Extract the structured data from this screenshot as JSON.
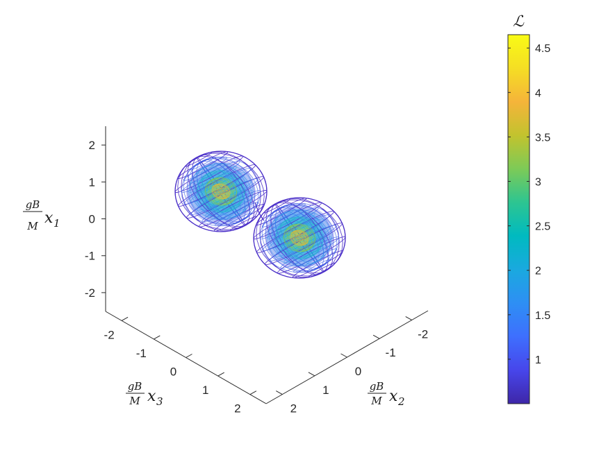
{
  "chart_data": {
    "type": "3d-isosurface-wireframe",
    "description_terms": [],
    "axes": {
      "vertical": {
        "label_frac_num": "gB",
        "label_frac_den": "M",
        "label_var": "x",
        "label_sub": "1",
        "ticks": [
          "2",
          "1",
          "0",
          "-1",
          "-2"
        ],
        "tick_values": [
          2,
          1,
          0,
          -1,
          -2
        ],
        "range": [
          -2.5,
          2.5
        ]
      },
      "left_floor": {
        "label_frac_num": "gB",
        "label_frac_den": "M",
        "label_var": "x",
        "label_sub": "3",
        "ticks": [
          "-2",
          "-1",
          "0",
          "1",
          "2"
        ],
        "tick_values": [
          -2,
          -1,
          0,
          1,
          2
        ],
        "range": [
          -2.5,
          2.5
        ]
      },
      "right_floor": {
        "label_frac_num": "gB",
        "label_frac_den": "M",
        "label_var": "x",
        "label_sub": "2",
        "ticks": [
          "2",
          "1",
          "0",
          "-1",
          "-2"
        ],
        "tick_values": [
          2,
          1,
          0,
          -1,
          -2
        ],
        "range": [
          -2.5,
          2.5
        ]
      }
    },
    "surface": {
      "lobes": [
        {
          "x1": 0.8,
          "x2": 0.7,
          "x3": -0.7,
          "radius": 1.0
        },
        {
          "x1": -0.8,
          "x2": -0.7,
          "x3": 0.7,
          "radius": 1.0
        }
      ],
      "style": "wireframe mesh colored by L",
      "outer_level": 0.5,
      "inner_peak": 4.6
    },
    "colorbar": {
      "title": "ℒ",
      "ticks": [
        "4.5",
        "4",
        "3.5",
        "3",
        "2.5",
        "2",
        "1.5",
        "1"
      ],
      "tick_values": [
        4.5,
        4,
        3.5,
        3,
        2.5,
        2,
        1.5,
        1
      ],
      "range": [
        0.5,
        4.65
      ],
      "colormap": "parula",
      "colormap_stops": [
        "#3e26a8",
        "#4746eb",
        "#3e6ffe",
        "#2e8ff4",
        "#1aa9df",
        "#00bac0",
        "#2dc591",
        "#7dca57",
        "#c2c32e",
        "#f5b43a",
        "#f5de24",
        "#f9fb15"
      ]
    },
    "grid": false
  }
}
